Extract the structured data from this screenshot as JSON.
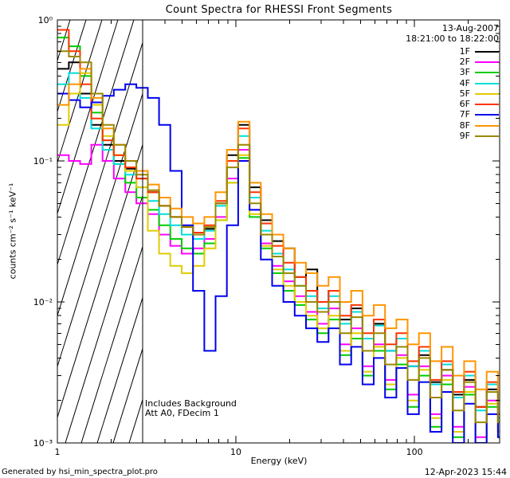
{
  "footer": {
    "left": "Generated by hsi_min_spectra_plot.pro",
    "right": "12-Apr-2023 15:44"
  },
  "chart_data": {
    "type": "line",
    "subtype": "stepped-histogram-spectra, log-log",
    "title": "Count Spectra for RHESSI Front Segments",
    "xlabel": "Energy (keV)",
    "ylabel": "counts cm⁻² s⁻¹ keV⁻¹",
    "xscale": "log",
    "yscale": "log",
    "xlim": [
      1,
      300
    ],
    "ylim": [
      0.001,
      1
    ],
    "grid": false,
    "legend": {
      "position": "top-right-inside",
      "date": "13-Aug-2007",
      "time_range": "18:21:00 to 18:22:00"
    },
    "annotations": {
      "line1": "Includes Background",
      "line2": "Att A0, FDecim 1"
    },
    "hatch_region_kev": [
      1,
      3
    ],
    "x_ticks": [
      {
        "v": 1,
        "label": "1"
      },
      {
        "v": 10,
        "label": "10"
      },
      {
        "v": 100,
        "label": "100"
      }
    ],
    "y_ticks": [
      {
        "v": 1,
        "label": "10⁰"
      },
      {
        "v": 0.1,
        "label": "10⁻¹"
      },
      {
        "v": 0.01,
        "label": "10⁻²"
      },
      {
        "v": 0.001,
        "label": "10⁻³"
      }
    ],
    "energies_kev": [
      1.0,
      1.16,
      1.34,
      1.55,
      1.79,
      2.07,
      2.4,
      2.77,
      3.21,
      3.71,
      4.29,
      4.97,
      5.75,
      6.65,
      7.69,
      8.9,
      10.3,
      11.92,
      13.79,
      15.95,
      18.45,
      21.34,
      24.69,
      28.56,
      33.04,
      38.22,
      44.21,
      51.15,
      59.17,
      68.44,
      79.17,
      91.58,
      105.94,
      122.55,
      141.76,
      163.98,
      189.69,
      219.43,
      253.83,
      293.62
    ],
    "series": [
      {
        "name": "1F",
        "color": "#000000",
        "values": [
          0.45,
          0.5,
          0.3,
          0.18,
          0.13,
          0.1,
          0.088,
          0.075,
          0.06,
          0.048,
          0.04,
          0.034,
          0.03,
          0.033,
          0.05,
          0.11,
          0.18,
          0.065,
          0.038,
          0.027,
          0.024,
          0.015,
          0.017,
          0.01,
          0.012,
          0.0075,
          0.009,
          0.0055,
          0.007,
          0.0045,
          0.0055,
          0.0035,
          0.0042,
          0.0027,
          0.0033,
          0.0022,
          0.0028,
          0.0018,
          0.0024,
          0.0016
        ]
      },
      {
        "name": "2F",
        "color": "#ff00ff",
        "values": [
          0.11,
          0.1,
          0.095,
          0.13,
          0.1,
          0.075,
          0.06,
          0.05,
          0.042,
          0.03,
          0.025,
          0.022,
          0.024,
          0.028,
          0.04,
          0.075,
          0.12,
          0.045,
          0.026,
          0.018,
          0.014,
          0.011,
          0.0085,
          0.007,
          0.009,
          0.005,
          0.0065,
          0.0035,
          0.005,
          0.0028,
          0.0042,
          0.0022,
          0.0035,
          0.0016,
          0.003,
          0.0013,
          0.0025,
          0.0011,
          0.002,
          0.0012
        ]
      },
      {
        "name": "3F",
        "color": "#00cc00",
        "values": [
          0.75,
          0.65,
          0.4,
          0.22,
          0.14,
          0.095,
          0.07,
          0.055,
          0.045,
          0.035,
          0.028,
          0.024,
          0.022,
          0.026,
          0.038,
          0.07,
          0.105,
          0.04,
          0.024,
          0.016,
          0.012,
          0.0095,
          0.0075,
          0.006,
          0.0075,
          0.0042,
          0.0055,
          0.003,
          0.0045,
          0.0024,
          0.0036,
          0.0018,
          0.003,
          0.0013,
          0.0026,
          0.0011,
          0.0022,
          0.001,
          0.0018,
          0.0011
        ]
      },
      {
        "name": "4F",
        "color": "#00dddd",
        "values": [
          0.35,
          0.42,
          0.28,
          0.17,
          0.12,
          0.095,
          0.08,
          0.065,
          0.052,
          0.042,
          0.035,
          0.03,
          0.028,
          0.032,
          0.048,
          0.1,
          0.15,
          0.055,
          0.032,
          0.022,
          0.017,
          0.013,
          0.011,
          0.009,
          0.011,
          0.007,
          0.0085,
          0.0055,
          0.0068,
          0.0045,
          0.0055,
          0.0035,
          0.0045,
          0.0026,
          0.0036,
          0.0021,
          0.003,
          0.0017,
          0.0026,
          0.0015
        ]
      },
      {
        "name": "5F",
        "color": "#e0cc00",
        "values": [
          0.18,
          0.3,
          0.42,
          0.25,
          0.15,
          0.11,
          0.085,
          0.065,
          0.032,
          0.022,
          0.018,
          0.016,
          0.018,
          0.024,
          0.038,
          0.07,
          0.11,
          0.042,
          0.025,
          0.017,
          0.013,
          0.01,
          0.008,
          0.0065,
          0.008,
          0.0045,
          0.006,
          0.0032,
          0.0048,
          0.0026,
          0.004,
          0.002,
          0.0033,
          0.0015,
          0.0028,
          0.0012,
          0.0023,
          0.001,
          0.0019,
          0.0012
        ]
      },
      {
        "name": "6F",
        "color": "#ff3300",
        "values": [
          0.85,
          0.6,
          0.35,
          0.2,
          0.14,
          0.11,
          0.09,
          0.075,
          0.06,
          0.048,
          0.04,
          0.034,
          0.031,
          0.035,
          0.052,
          0.1,
          0.17,
          0.06,
          0.036,
          0.025,
          0.019,
          0.015,
          0.012,
          0.01,
          0.012,
          0.008,
          0.0095,
          0.006,
          0.0075,
          0.005,
          0.006,
          0.0038,
          0.0048,
          0.0028,
          0.0038,
          0.0023,
          0.0032,
          0.0018,
          0.0027,
          0.0016
        ]
      },
      {
        "name": "7F",
        "color": "#0000ee",
        "values": [
          0.3,
          0.27,
          0.24,
          0.26,
          0.29,
          0.32,
          0.35,
          0.33,
          0.28,
          0.18,
          0.085,
          0.035,
          0.012,
          0.0045,
          0.011,
          0.035,
          0.1,
          0.045,
          0.02,
          0.013,
          0.01,
          0.008,
          0.0065,
          0.0052,
          0.0065,
          0.0036,
          0.0048,
          0.0026,
          0.004,
          0.0021,
          0.0034,
          0.0016,
          0.0027,
          0.0012,
          0.0023,
          0.001,
          0.0019,
          0.001,
          0.0016,
          0.0011
        ]
      },
      {
        "name": "8F",
        "color": "#ff9500",
        "values": [
          0.25,
          0.35,
          0.45,
          0.28,
          0.17,
          0.13,
          0.1,
          0.085,
          0.068,
          0.055,
          0.046,
          0.04,
          0.036,
          0.04,
          0.06,
          0.12,
          0.19,
          0.07,
          0.042,
          0.03,
          0.024,
          0.019,
          0.016,
          0.013,
          0.015,
          0.01,
          0.012,
          0.008,
          0.0095,
          0.0065,
          0.0075,
          0.005,
          0.006,
          0.0038,
          0.0048,
          0.003,
          0.0038,
          0.0024,
          0.0032,
          0.002
        ]
      },
      {
        "name": "9F",
        "color": "#9b8700",
        "values": [
          0.6,
          0.55,
          0.5,
          0.3,
          0.18,
          0.13,
          0.1,
          0.08,
          0.062,
          0.048,
          0.04,
          0.034,
          0.03,
          0.034,
          0.05,
          0.09,
          0.13,
          0.05,
          0.03,
          0.021,
          0.016,
          0.013,
          0.01,
          0.0085,
          0.01,
          0.006,
          0.0078,
          0.0045,
          0.006,
          0.0036,
          0.0048,
          0.0028,
          0.004,
          0.0021,
          0.0033,
          0.0017,
          0.0027,
          0.0014,
          0.0023,
          0.0014
        ]
      }
    ]
  }
}
